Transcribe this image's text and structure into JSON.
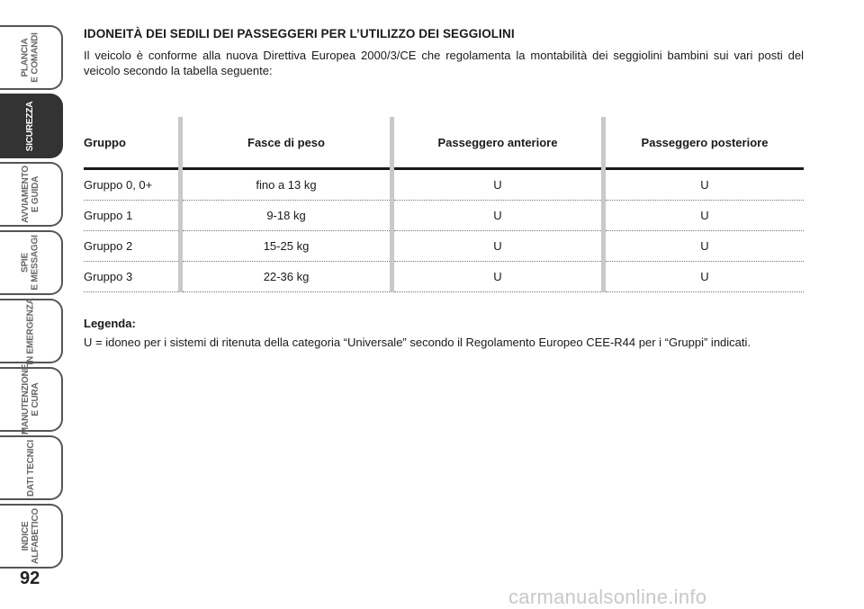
{
  "sidebar": {
    "tabs": [
      {
        "label": "PLANCIA\nE COMANDI",
        "active": false
      },
      {
        "label": "SICUREZZA",
        "active": true
      },
      {
        "label": "AVVIAMENTO\nE GUIDA",
        "active": false
      },
      {
        "label": "SPIE\nE MESSAGGI",
        "active": false
      },
      {
        "label": "IN EMERGENZA",
        "active": false
      },
      {
        "label": "MANUTENZIONE\nE CURA",
        "active": false
      },
      {
        "label": "DATI TECNICI",
        "active": false
      },
      {
        "label": "INDICE\nALFABETICO",
        "active": false
      }
    ]
  },
  "page_number": "92",
  "section": {
    "heading": "IDONEITÀ DEI SEDILI DEI PASSEGGERI PER L’UTILIZZO DEI SEGGIOLINI",
    "intro": "Il veicolo è conforme alla nuova Direttiva Europea 2000/3/CE che regolamenta la montabilità dei seggiolini bambini sui vari posti del veicolo secondo la tabella seguente:"
  },
  "table": {
    "headers": [
      "Gruppo",
      "Fasce di peso",
      "Passeggero anteriore",
      "Passeggero posteriore"
    ],
    "rows": [
      [
        "Gruppo 0, 0+",
        "fino a 13 kg",
        "U",
        "U"
      ],
      [
        "Gruppo 1",
        "9-18 kg",
        "U",
        "U"
      ],
      [
        "Gruppo 2",
        "15-25 kg",
        "U",
        "U"
      ],
      [
        "Gruppo 3",
        "22-36 kg",
        "U",
        "U"
      ]
    ]
  },
  "legend": {
    "title": "Legenda:",
    "text": "U = idoneo per i sistemi di ritenuta della categoria “Universale” secondo il Regolamento Europeo CEE-R44 per i “Gruppi” indicati."
  },
  "footer": {
    "watermark": "carmanualsonline.info"
  }
}
